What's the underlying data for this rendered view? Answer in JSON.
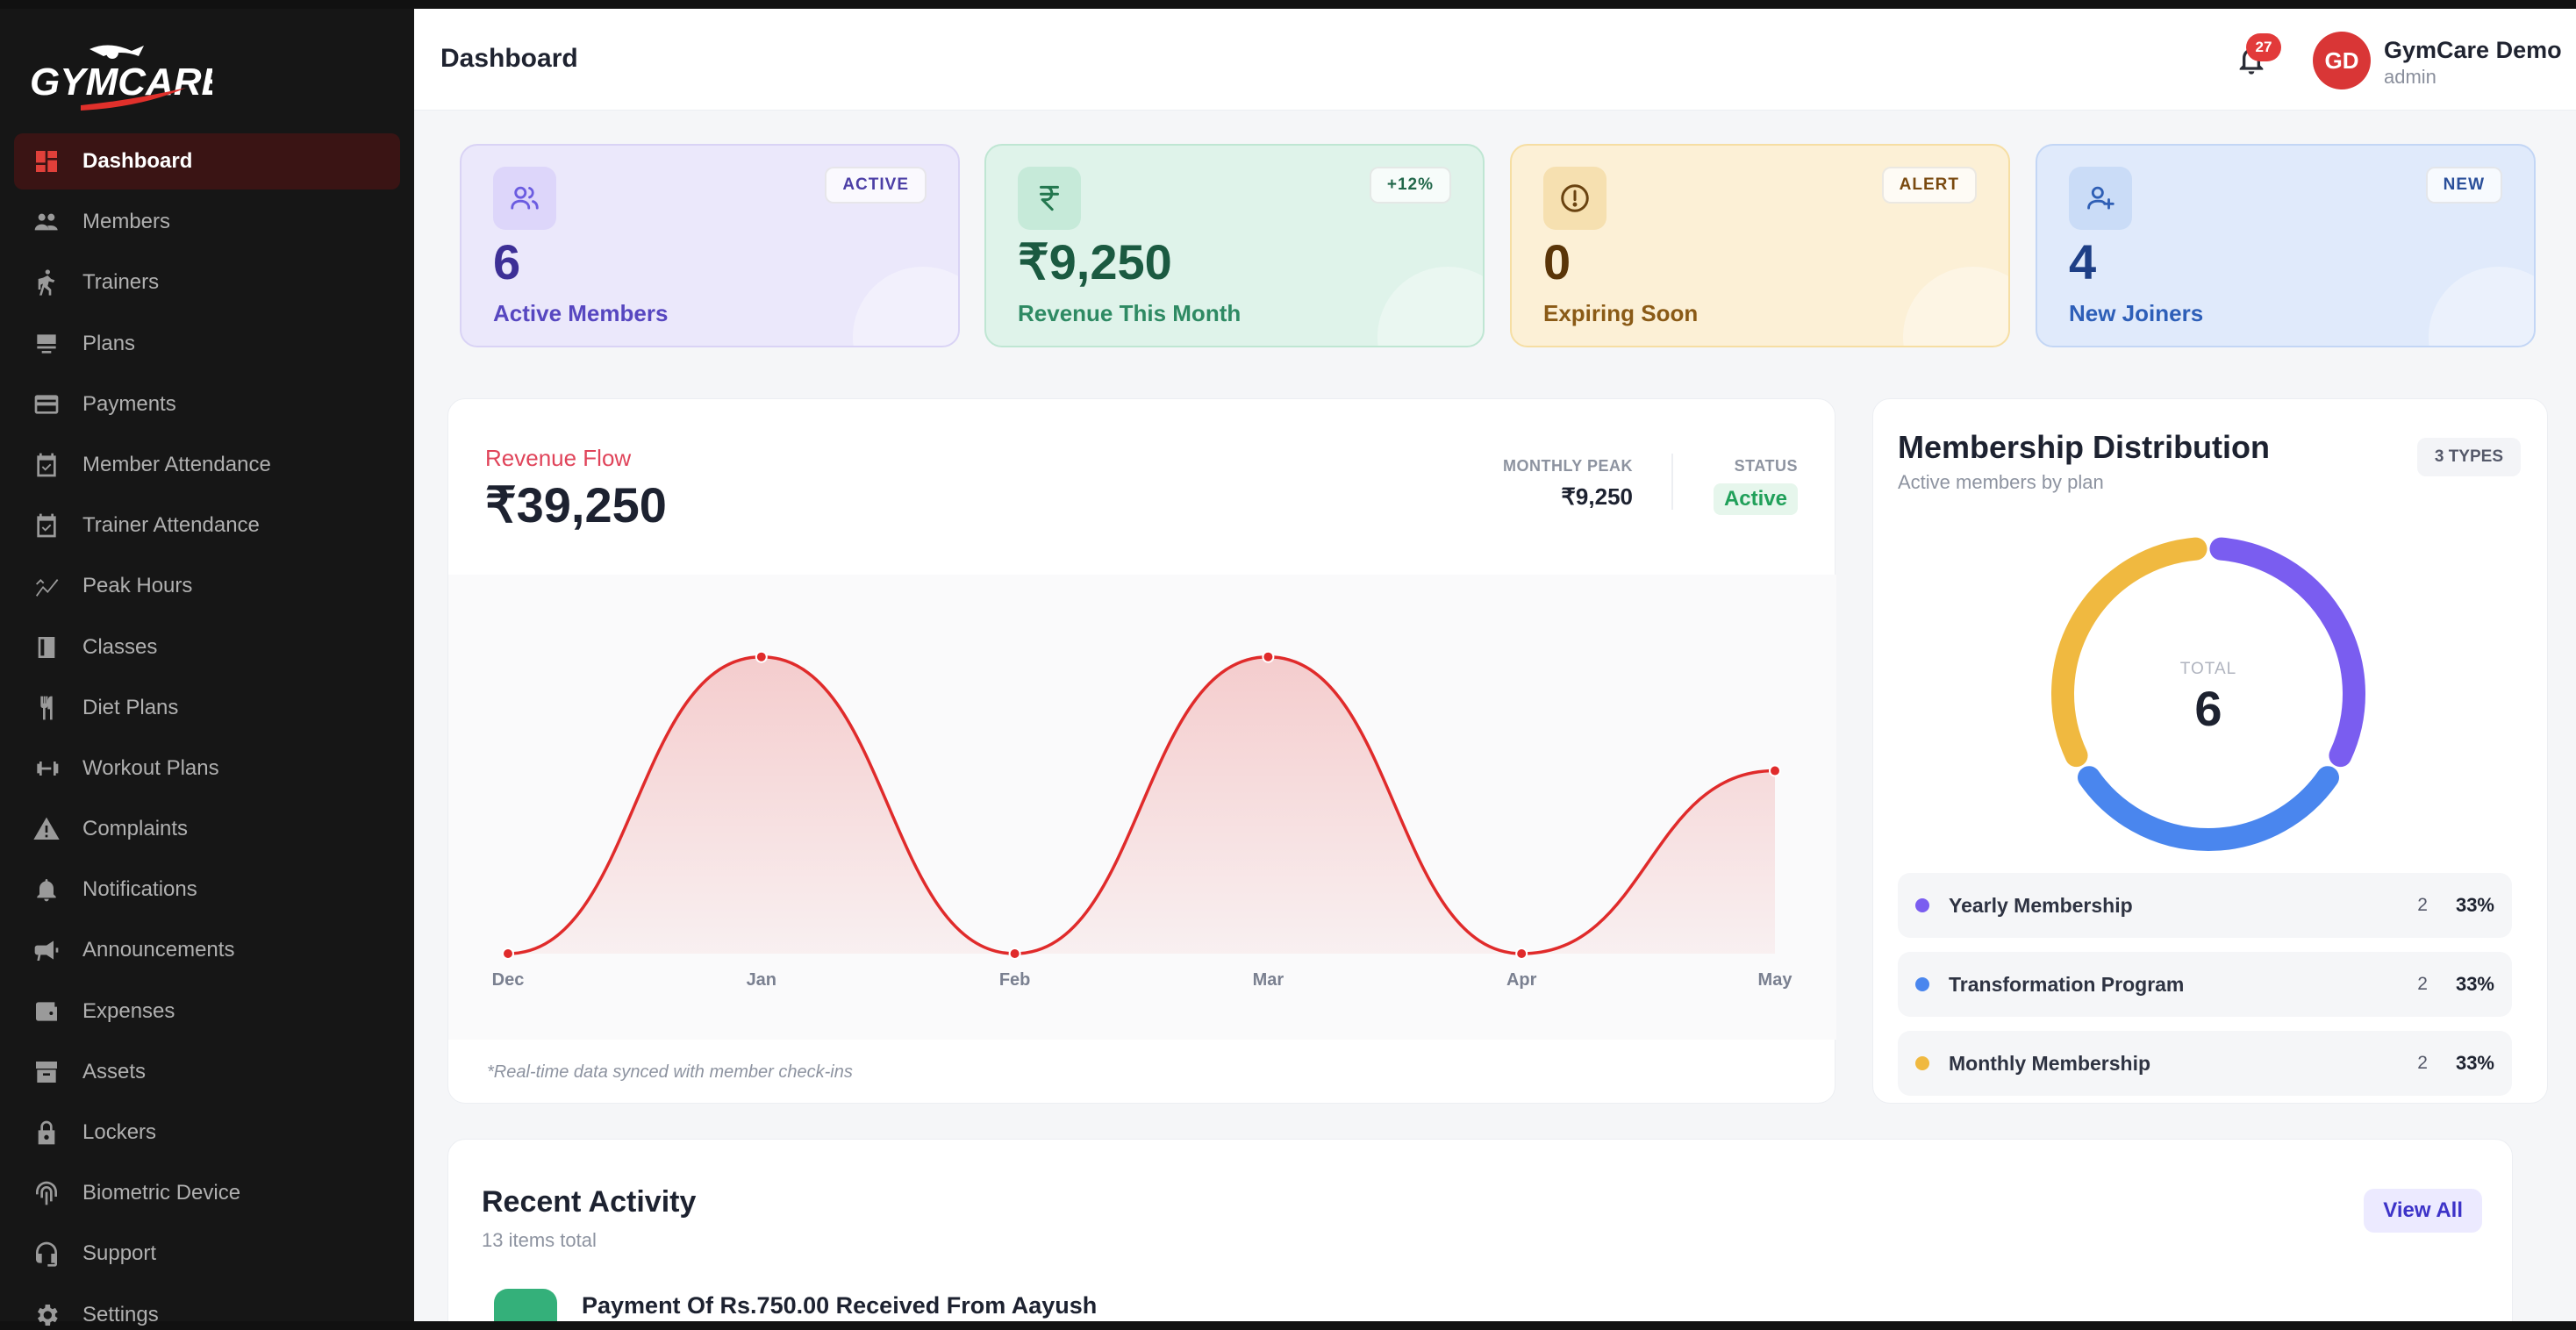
{
  "brand": {
    "logo_text": "GYMCARE"
  },
  "sidebar": {
    "items": [
      {
        "label": "Dashboard",
        "icon": "dashboard-icon",
        "active": true
      },
      {
        "label": "Members",
        "icon": "members-icon"
      },
      {
        "label": "Trainers",
        "icon": "trainers-icon"
      },
      {
        "label": "Plans",
        "icon": "plans-icon"
      },
      {
        "label": "Payments",
        "icon": "payments-icon"
      },
      {
        "label": "Member Attendance",
        "icon": "member-attendance-icon"
      },
      {
        "label": "Trainer Attendance",
        "icon": "trainer-attendance-icon"
      },
      {
        "label": "Peak Hours",
        "icon": "peak-hours-icon"
      },
      {
        "label": "Classes",
        "icon": "classes-icon"
      },
      {
        "label": "Diet Plans",
        "icon": "diet-plans-icon"
      },
      {
        "label": "Workout Plans",
        "icon": "workout-plans-icon"
      },
      {
        "label": "Complaints",
        "icon": "complaints-icon"
      },
      {
        "label": "Notifications",
        "icon": "notifications-icon"
      },
      {
        "label": "Announcements",
        "icon": "announcements-icon"
      },
      {
        "label": "Expenses",
        "icon": "expenses-icon"
      },
      {
        "label": "Assets",
        "icon": "assets-icon"
      },
      {
        "label": "Lockers",
        "icon": "lockers-icon"
      },
      {
        "label": "Biometric Device",
        "icon": "biometric-icon"
      },
      {
        "label": "Support",
        "icon": "support-icon"
      },
      {
        "label": "Settings",
        "icon": "settings-icon"
      }
    ]
  },
  "header": {
    "title": "Dashboard",
    "notification_count": "27",
    "user": {
      "initials": "GD",
      "name": "GymCare Demo",
      "role": "admin"
    }
  },
  "stats": [
    {
      "badge": "ACTIVE",
      "value": "6",
      "label": "Active Members",
      "icon": "users-icon"
    },
    {
      "badge": "+12%",
      "value": "₹9,250",
      "label": "Revenue This Month",
      "icon": "rupee-icon"
    },
    {
      "badge": "ALERT",
      "value": "0",
      "label": "Expiring Soon",
      "icon": "alert-icon"
    },
    {
      "badge": "NEW",
      "value": "4",
      "label": "New Joiners",
      "icon": "user-plus-icon"
    }
  ],
  "revenue": {
    "title": "Revenue Flow",
    "amount": "₹39,250",
    "peak_label": "MONTHLY PEAK",
    "peak_value": "₹9,250",
    "status_label": "STATUS",
    "status_value": "Active",
    "note": "*Real-time data synced with member check-ins"
  },
  "chart_data": {
    "type": "area",
    "categories": [
      "Dec",
      "Jan",
      "Feb",
      "Mar",
      "Apr",
      "May"
    ],
    "values": [
      0,
      9250,
      0,
      9250,
      0,
      5700
    ],
    "ylim": [
      0,
      10500
    ],
    "color": "#e02b2b",
    "grid": false
  },
  "distribution": {
    "title": "Membership Distribution",
    "subtitle": "Active members by plan",
    "types_badge": "3 TYPES",
    "total_label": "TOTAL",
    "total": "6",
    "items": [
      {
        "name": "Yearly Membership",
        "count": "2",
        "pct": "33%",
        "color": "#7a5df0"
      },
      {
        "name": "Transformation Program",
        "count": "2",
        "pct": "33%",
        "color": "#4a86ee"
      },
      {
        "name": "Monthly Membership",
        "count": "2",
        "pct": "33%",
        "color": "#f0b940"
      }
    ]
  },
  "activity": {
    "title": "Recent Activity",
    "subtitle": "13 items total",
    "view_all": "View All",
    "items": [
      {
        "text": "Payment Of Rs.750.00 Received From Aayush"
      }
    ]
  }
}
